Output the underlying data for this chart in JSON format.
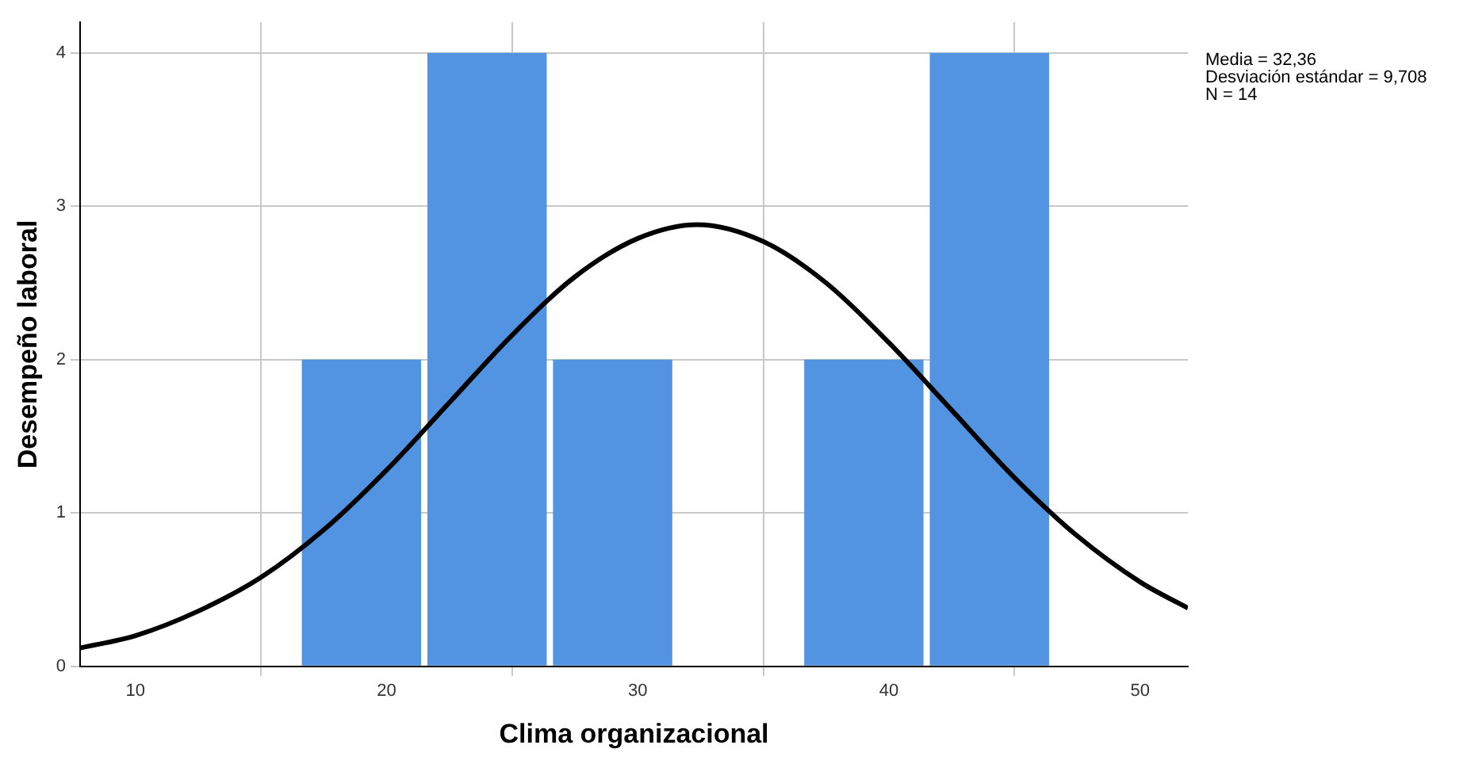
{
  "chart_data": {
    "type": "histogram",
    "xlabel": "Clima organizacional",
    "ylabel": "Desempeño laboral",
    "series": [
      {
        "type": "histogram",
        "bins": [
          16.5,
          21.5,
          26.5,
          31.5,
          36.5,
          41.5,
          46.5
        ],
        "values": [
          2,
          4,
          2,
          0,
          2,
          4
        ],
        "color": "#5294e2"
      },
      {
        "type": "line",
        "color": "#000000",
        "x": [
          7.8,
          10,
          12.5,
          15,
          17.5,
          20,
          22.5,
          25,
          27.5,
          30,
          32.36,
          35,
          37.5,
          40,
          42.5,
          45,
          47.5,
          50,
          51.9
        ],
        "values": [
          0.12,
          0.2,
          0.36,
          0.58,
          0.89,
          1.28,
          1.72,
          2.16,
          2.54,
          2.79,
          2.88,
          2.77,
          2.5,
          2.11,
          1.67,
          1.23,
          0.85,
          0.55,
          0.38
        ]
      }
    ],
    "xlim": [
      7.8,
      51.9
    ],
    "xticks": [
      10,
      20,
      30,
      40,
      50
    ],
    "ylim": [
      0,
      4.2
    ],
    "yticks": [
      0,
      1,
      2,
      3,
      4
    ],
    "grid": true,
    "legend": false,
    "annotations": [
      "Media = 32,36",
      "Desviación estándar = 9,708",
      "N = 14"
    ]
  }
}
